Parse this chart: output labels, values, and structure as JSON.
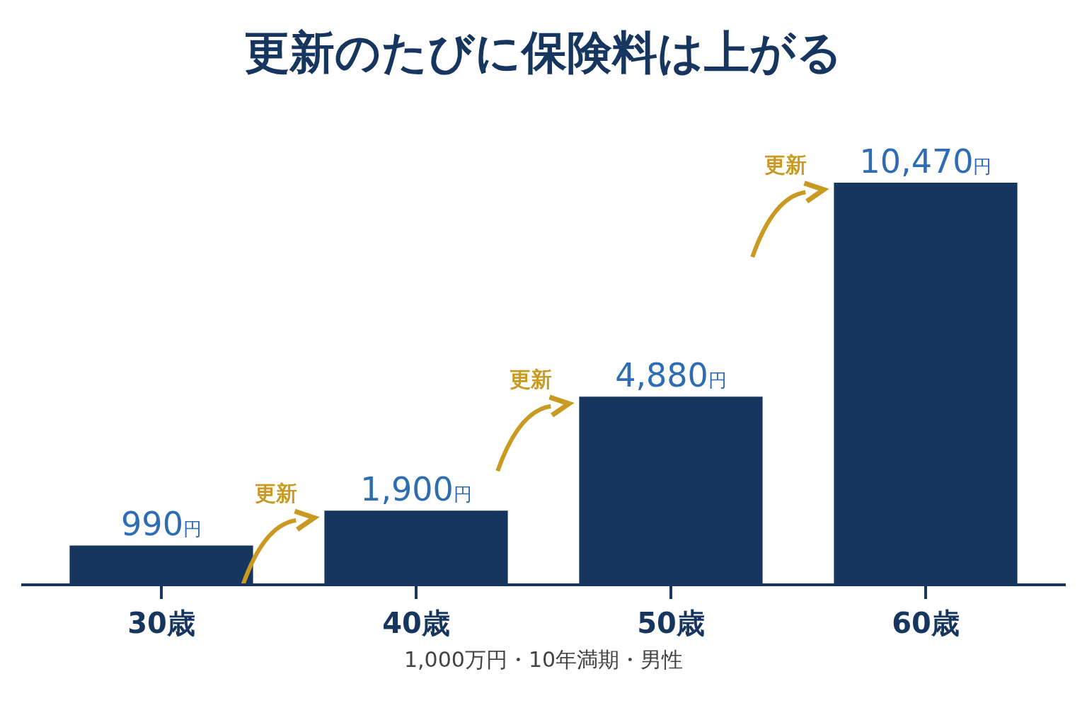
{
  "chart_data": {
    "type": "bar",
    "title": "更新のたびに保険料は上がる",
    "categories": [
      "30歳",
      "40歳",
      "50歳",
      "60歳"
    ],
    "values": [
      990,
      1900,
      4880,
      10470
    ],
    "value_labels": [
      "990円",
      "1,900円",
      "4,880円",
      "10,470円"
    ],
    "color": "#17365f",
    "annotations": [
      "更新",
      "更新",
      "更新",
      "1,000万円・10年満期・男性"
    ],
    "legend": false
  }
}
